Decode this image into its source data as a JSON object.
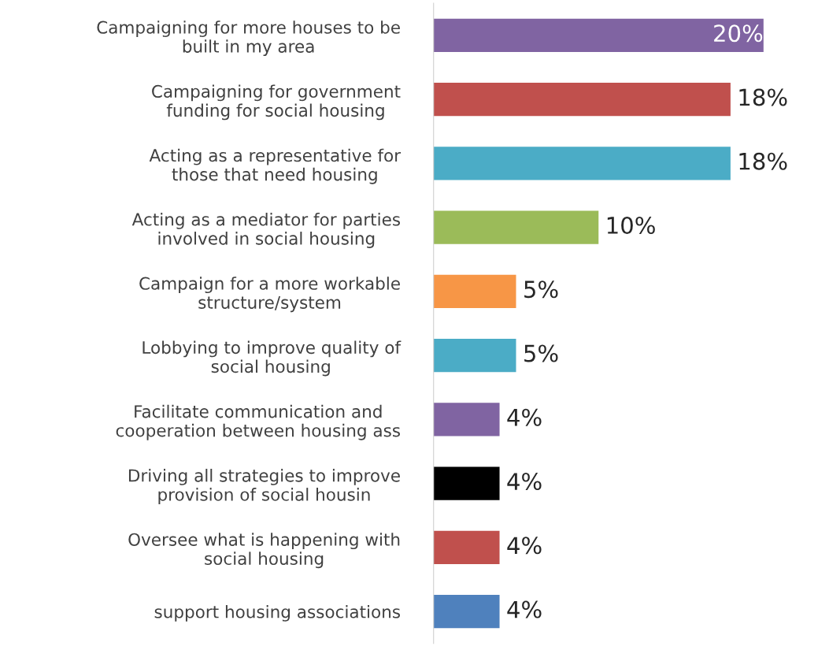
{
  "chart_data": {
    "type": "bar",
    "orientation": "horizontal",
    "data_labels": true,
    "grid": false,
    "legend": false,
    "tick_labels": "y",
    "categories": [
      "Campaigning for more houses to be\nbuilt in my area",
      "Campaigning for government\nfunding for social housing",
      "Acting as a representative for\nthose that need housing",
      "Acting as a mediator for parties\ninvolved in social housing",
      "Campaign for a more workable\nstructure/system",
      "Lobbying to improve quality of\nsocial housing",
      "Facilitate communication and\ncooperation between housing ass",
      "Driving all strategies to improve\nprovision of social housin",
      "Oversee what is happening with\nsocial housing",
      "support housing associations"
    ],
    "values": [
      20,
      18,
      18,
      10,
      5,
      5,
      4,
      4,
      4,
      4
    ],
    "value_labels": [
      "20%",
      "18%",
      "18%",
      "10%",
      "5%",
      "5%",
      "4%",
      "4%",
      "4%",
      "4%"
    ],
    "colors": [
      "#8064a2",
      "#c0504d",
      "#4bacc6",
      "#9bbb59",
      "#f79646",
      "#4bacc6",
      "#8064a2",
      "#000000",
      "#c0504d",
      "#4f81bd"
    ]
  }
}
